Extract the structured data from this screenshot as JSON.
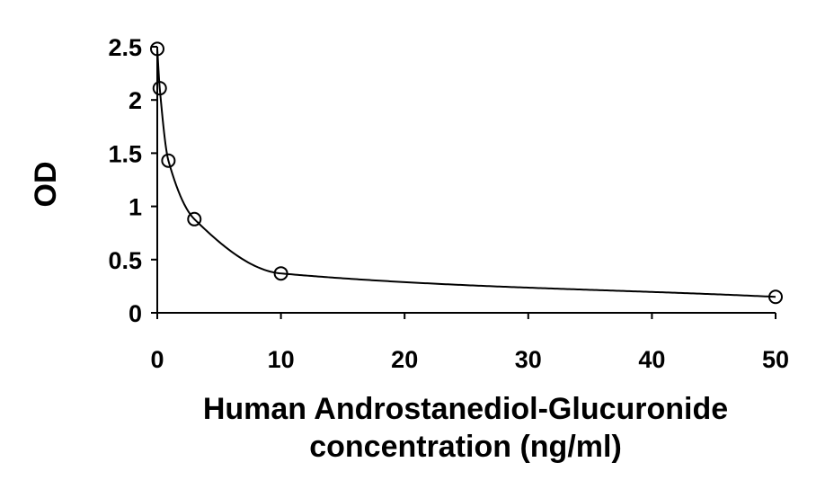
{
  "chart_data": {
    "type": "scatter",
    "title": "",
    "xlabel_lines": [
      "Human Androstanediol-Glucuronide",
      "concentration (ng/ml)"
    ],
    "ylabel": "OD",
    "xlim": [
      0,
      50
    ],
    "ylim": [
      0,
      2.5
    ],
    "x_ticks": [
      0,
      10,
      20,
      30,
      40,
      50
    ],
    "y_ticks": [
      0,
      0.5,
      1,
      1.5,
      2,
      2.5
    ],
    "x_tick_labels": [
      "0",
      "10",
      "20",
      "30",
      "40",
      "50"
    ],
    "y_tick_labels": [
      "0",
      "0.5",
      "1",
      "1.5",
      "2",
      "2.5"
    ],
    "grid": false,
    "legend": "none",
    "series": [
      {
        "marker": "open-circle",
        "x": [
          0,
          0.2,
          0.9,
          3,
          10,
          50
        ],
        "y": [
          2.48,
          2.11,
          1.43,
          0.88,
          0.37,
          0.15
        ]
      }
    ],
    "fit_curve": {
      "type": "smooth-decay",
      "color": "#000000"
    },
    "colors": {
      "axis": "#000000",
      "marker_stroke": "#000000",
      "curve": "#000000"
    }
  }
}
